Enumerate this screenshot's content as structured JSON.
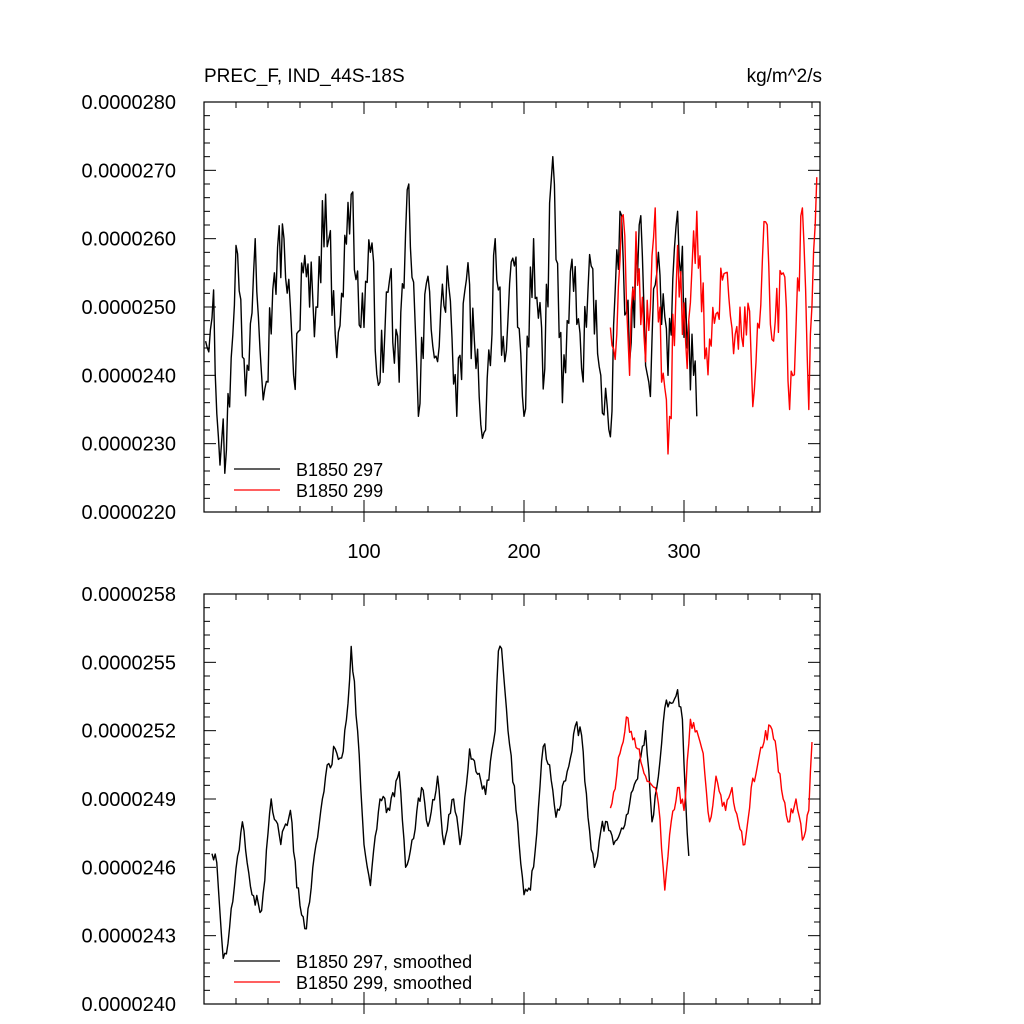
{
  "chart_data": [
    {
      "type": "line",
      "title_left": "PREC_F, IND_44S-18S",
      "title_right": "kg/m^2/s",
      "xlim": [
        0,
        385
      ],
      "ylim": [
        2.2e-05,
        2.8e-05
      ],
      "xticks": [
        100,
        200,
        300
      ],
      "xtick_labels": [
        "100",
        "200",
        "300"
      ],
      "yticks": [
        2.2e-05,
        2.3e-05,
        2.4e-05,
        2.5e-05,
        2.6e-05,
        2.7e-05,
        2.8e-05
      ],
      "ytick_labels": [
        "0.0000220",
        "0.0000230",
        "0.0000240",
        "0.0000250",
        "0.0000260",
        "0.0000270",
        "0.0000280"
      ],
      "grid": false,
      "legend_position": "bottom-left",
      "series": [
        {
          "name": "B1850 297",
          "color": "#000000",
          "x_start": 1,
          "x_end": 308,
          "anchors": [
            [
              1,
              2.45e-05
            ],
            [
              6,
              2.525e-05
            ],
            [
              9,
              2.31e-05
            ],
            [
              14,
              2.29e-05
            ],
            [
              20,
              2.59e-05
            ],
            [
              26,
              2.37e-05
            ],
            [
              32,
              2.6e-05
            ],
            [
              38,
              2.38e-05
            ],
            [
              44,
              2.55e-05
            ],
            [
              50,
              2.6e-05
            ],
            [
              56,
              2.4e-05
            ],
            [
              62,
              2.55e-05
            ],
            [
              70,
              2.5e-05
            ],
            [
              76,
              2.665e-05
            ],
            [
              82,
              2.46e-05
            ],
            [
              86,
              2.52e-05
            ],
            [
              92,
              2.665e-05
            ],
            [
              98,
              2.47e-05
            ],
            [
              104,
              2.58e-05
            ],
            [
              110,
              2.39e-05
            ],
            [
              116,
              2.54e-05
            ],
            [
              122,
              2.39e-05
            ],
            [
              128,
              2.68e-05
            ],
            [
              134,
              2.34e-05
            ],
            [
              140,
              2.545e-05
            ],
            [
              146,
              2.42e-05
            ],
            [
              152,
              2.56e-05
            ],
            [
              158,
              2.34e-05
            ],
            [
              164,
              2.54e-05
            ],
            [
              170,
              2.41e-05
            ],
            [
              176,
              2.32e-05
            ],
            [
              182,
              2.6e-05
            ],
            [
              188,
              2.42e-05
            ],
            [
              194,
              2.56e-05
            ],
            [
              200,
              2.34e-05
            ],
            [
              206,
              2.6e-05
            ],
            [
              212,
              2.38e-05
            ],
            [
              218,
              2.72e-05
            ],
            [
              224,
              2.36e-05
            ],
            [
              230,
              2.57e-05
            ],
            [
              236,
              2.41e-05
            ],
            [
              242,
              2.56e-05
            ],
            [
              248,
              2.4e-05
            ],
            [
              254,
              2.31e-05
            ],
            [
              260,
              2.64e-05
            ],
            [
              266,
              2.42e-05
            ],
            [
              272,
              2.62e-05
            ],
            [
              278,
              2.39e-05
            ],
            [
              284,
              2.58e-05
            ],
            [
              290,
              2.4e-05
            ],
            [
              296,
              2.64e-05
            ],
            [
              302,
              2.44e-05
            ],
            [
              306,
              2.4e-05
            ],
            [
              308,
              2.34e-05
            ]
          ]
        },
        {
          "name": "B1850 299",
          "color": "#ff0000",
          "x_start": 254,
          "x_end": 383,
          "anchors": [
            [
              254,
              2.47e-05
            ],
            [
              258,
              2.46e-05
            ],
            [
              262,
              2.635e-05
            ],
            [
              266,
              2.4e-05
            ],
            [
              270,
              2.61e-05
            ],
            [
              276,
              2.42e-05
            ],
            [
              282,
              2.645e-05
            ],
            [
              286,
              2.39e-05
            ],
            [
              290,
              2.285e-05
            ],
            [
              296,
              2.59e-05
            ],
            [
              302,
              2.41e-05
            ],
            [
              308,
              2.64e-05
            ],
            [
              314,
              2.44e-05
            ],
            [
              320,
              2.49e-05
            ],
            [
              326,
              2.55e-05
            ],
            [
              332,
              2.46e-05
            ],
            [
              338,
              2.5e-05
            ],
            [
              344,
              2.38e-05
            ],
            [
              350,
              2.625e-05
            ],
            [
              356,
              2.45e-05
            ],
            [
              362,
              2.55e-05
            ],
            [
              366,
              2.35e-05
            ],
            [
              370,
              2.47e-05
            ],
            [
              374,
              2.645e-05
            ],
            [
              378,
              2.35e-05
            ],
            [
              382,
              2.62e-05
            ],
            [
              383,
              2.69e-05
            ]
          ]
        }
      ],
      "legend": [
        "B1850 297",
        "B1850 299"
      ]
    },
    {
      "type": "line",
      "xlim": [
        0,
        385
      ],
      "ylim": [
        2.4e-05,
        2.58e-05
      ],
      "xticks": [
        100,
        200,
        300
      ],
      "xtick_labels": [],
      "yticks": [
        2.4e-05,
        2.43e-05,
        2.46e-05,
        2.49e-05,
        2.52e-05,
        2.55e-05,
        2.58e-05
      ],
      "ytick_labels": [
        "0.0000240",
        "0.0000243",
        "0.0000246",
        "0.0000249",
        "0.0000252",
        "0.0000255",
        "0.0000258"
      ],
      "grid": false,
      "legend_position": "bottom-left",
      "series": [
        {
          "name": "B1850 297, smoothed",
          "color": "#000000",
          "x_start": 5,
          "x_end": 303,
          "anchors": [
            [
              5,
              2.466e-05
            ],
            [
              8,
              2.462e-05
            ],
            [
              10,
              2.44e-05
            ],
            [
              12,
              2.42e-05
            ],
            [
              14,
              2.422e-05
            ],
            [
              18,
              2.445e-05
            ],
            [
              24,
              2.48e-05
            ],
            [
              30,
              2.448e-05
            ],
            [
              36,
              2.441e-05
            ],
            [
              42,
              2.49e-05
            ],
            [
              48,
              2.47e-05
            ],
            [
              54,
              2.485e-05
            ],
            [
              58,
              2.451e-05
            ],
            [
              64,
              2.433e-05
            ],
            [
              70,
              2.47e-05
            ],
            [
              76,
              2.5e-05
            ],
            [
              82,
              2.512e-05
            ],
            [
              86,
              2.508e-05
            ],
            [
              90,
              2.532e-05
            ],
            [
              92,
              2.557e-05
            ],
            [
              96,
              2.52e-05
            ],
            [
              100,
              2.47e-05
            ],
            [
              104,
              2.452e-05
            ],
            [
              110,
              2.49e-05
            ],
            [
              116,
              2.485e-05
            ],
            [
              122,
              2.502e-05
            ],
            [
              126,
              2.46e-05
            ],
            [
              130,
              2.472e-05
            ],
            [
              136,
              2.495e-05
            ],
            [
              140,
              2.478e-05
            ],
            [
              146,
              2.5e-05
            ],
            [
              150,
              2.47e-05
            ],
            [
              156,
              2.49e-05
            ],
            [
              160,
              2.47e-05
            ],
            [
              166,
              2.512e-05
            ],
            [
              170,
              2.502e-05
            ],
            [
              176,
              2.492e-05
            ],
            [
              182,
              2.52e-05
            ],
            [
              184,
              2.555e-05
            ],
            [
              186,
              2.556e-05
            ],
            [
              190,
              2.52e-05
            ],
            [
              196,
              2.48e-05
            ],
            [
              200,
              2.448e-05
            ],
            [
              204,
              2.45e-05
            ],
            [
              208,
              2.475e-05
            ],
            [
              212,
              2.513e-05
            ],
            [
              216,
              2.505e-05
            ],
            [
              220,
              2.482e-05
            ],
            [
              226,
              2.498e-05
            ],
            [
              232,
              2.522e-05
            ],
            [
              236,
              2.518e-05
            ],
            [
              240,
              2.482e-05
            ],
            [
              244,
              2.46e-05
            ],
            [
              248,
              2.476e-05
            ],
            [
              252,
              2.48e-05
            ],
            [
              256,
              2.47e-05
            ],
            [
              260,
              2.475e-05
            ],
            [
              264,
              2.483e-05
            ],
            [
              270,
              2.498e-05
            ],
            [
              276,
              2.52e-05
            ],
            [
              280,
              2.48e-05
            ],
            [
              284,
              2.5e-05
            ],
            [
              288,
              2.53e-05
            ],
            [
              292,
              2.532e-05
            ],
            [
              296,
              2.538e-05
            ],
            [
              299,
              2.525e-05
            ],
            [
              301,
              2.49e-05
            ],
            [
              303,
              2.465e-05
            ]
          ]
        },
        {
          "name": "B1850 299, smoothed",
          "color": "#ff0000",
          "x_start": 254,
          "x_end": 380,
          "anchors": [
            [
              254,
              2.486e-05
            ],
            [
              256,
              2.493e-05
            ],
            [
              260,
              2.51e-05
            ],
            [
              264,
              2.526e-05
            ],
            [
              268,
              2.516e-05
            ],
            [
              272,
              2.512e-05
            ],
            [
              276,
              2.5e-05
            ],
            [
              280,
              2.496e-05
            ],
            [
              284,
              2.488e-05
            ],
            [
              288,
              2.45e-05
            ],
            [
              292,
              2.48e-05
            ],
            [
              296,
              2.495e-05
            ],
            [
              300,
              2.485e-05
            ],
            [
              304,
              2.525e-05
            ],
            [
              308,
              2.52e-05
            ],
            [
              312,
              2.51e-05
            ],
            [
              316,
              2.48e-05
            ],
            [
              320,
              2.5e-05
            ],
            [
              326,
              2.485e-05
            ],
            [
              330,
              2.495e-05
            ],
            [
              334,
              2.48e-05
            ],
            [
              338,
              2.47e-05
            ],
            [
              342,
              2.495e-05
            ],
            [
              346,
              2.505e-05
            ],
            [
              350,
              2.515e-05
            ],
            [
              354,
              2.522e-05
            ],
            [
              358,
              2.51e-05
            ],
            [
              362,
              2.49e-05
            ],
            [
              366,
              2.48e-05
            ],
            [
              370,
              2.49e-05
            ],
            [
              374,
              2.472e-05
            ],
            [
              378,
              2.485e-05
            ],
            [
              380,
              2.515e-05
            ]
          ]
        }
      ],
      "legend": [
        "B1850 297, smoothed",
        "B1850 299, smoothed"
      ]
    }
  ]
}
